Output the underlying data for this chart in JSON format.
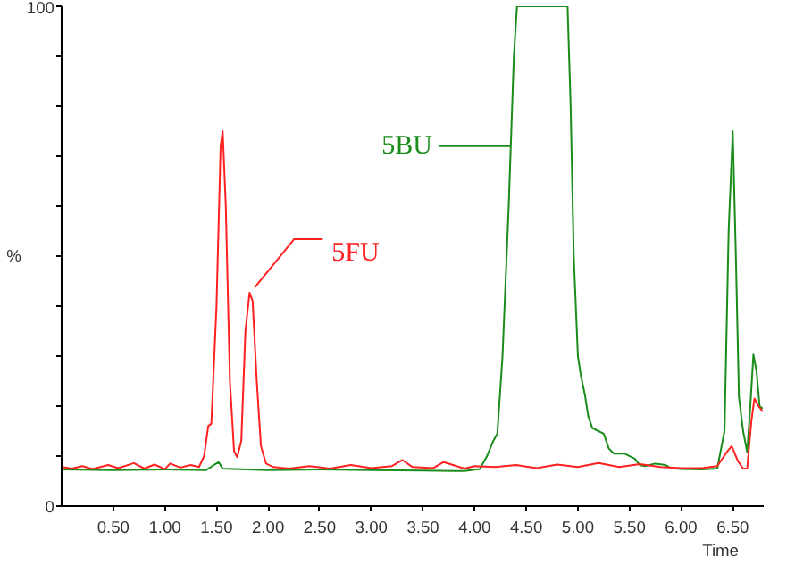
{
  "chart_data": {
    "type": "line",
    "xlabel": "Time",
    "ylabel": "%",
    "xlim": [
      0,
      6.8
    ],
    "ylim": [
      0,
      100
    ],
    "xticks": [
      {
        "value": 0.5,
        "label": "0.50"
      },
      {
        "value": 1.0,
        "label": "1.00"
      },
      {
        "value": 1.5,
        "label": "1.50"
      },
      {
        "value": 2.0,
        "label": "2.00"
      },
      {
        "value": 2.5,
        "label": "2.50"
      },
      {
        "value": 3.0,
        "label": "3.00"
      },
      {
        "value": 3.5,
        "label": "3.50"
      },
      {
        "value": 4.0,
        "label": "4.00"
      },
      {
        "value": 4.5,
        "label": "4.50"
      },
      {
        "value": 5.0,
        "label": "5.00"
      },
      {
        "value": 5.5,
        "label": "5.50"
      },
      {
        "value": 6.0,
        "label": "6.00"
      },
      {
        "value": 6.5,
        "label": "6.50"
      }
    ],
    "yticks": [
      0,
      {
        "value": 10,
        "label": null
      },
      {
        "value": 20,
        "label": null
      },
      {
        "value": 30,
        "label": null
      },
      {
        "value": 40,
        "label": null
      },
      {
        "value": 50,
        "label": null
      },
      {
        "value": 60,
        "label": null
      },
      {
        "value": 70,
        "label": null
      },
      {
        "value": 80,
        "label": null
      },
      {
        "value": 90,
        "label": null
      },
      100
    ],
    "grid": false,
    "marker": "none",
    "line_style": "solid",
    "series": [
      {
        "color": "#1a8c1a",
        "x": [
          0,
          0.5,
          1.0,
          1.4,
          1.52,
          1.56,
          2.0,
          2.5,
          3.0,
          3.5,
          3.9,
          4.05,
          4.12,
          4.18,
          4.22,
          4.27,
          4.33,
          4.38,
          4.41,
          4.6,
          4.9,
          4.93,
          4.96,
          5.0,
          5.03,
          5.07,
          5.1,
          5.14,
          5.2,
          5.25,
          5.3,
          5.35,
          5.45,
          5.55,
          5.6,
          5.65,
          5.75,
          5.85,
          5.9,
          6.0,
          6.2,
          6.35,
          6.42,
          6.46,
          6.5,
          6.53,
          6.56,
          6.6,
          6.64,
          6.67,
          6.7,
          6.73,
          6.76,
          6.79
        ],
        "values": [
          7.3,
          7.2,
          7.3,
          7.2,
          8.8,
          7.5,
          7.2,
          7.3,
          7.2,
          7.1,
          7.0,
          7.4,
          10,
          13,
          14.5,
          30,
          60,
          90,
          100,
          100,
          100,
          80,
          50,
          30,
          26,
          22,
          18,
          15.6,
          15,
          14.5,
          11.5,
          10.5,
          10.5,
          9.5,
          8.2,
          8.0,
          8.5,
          8.2,
          7.6,
          7.4,
          7.3,
          7.5,
          15,
          55,
          75,
          50,
          21.8,
          15,
          10.8,
          20,
          30.3,
          27,
          20,
          19.5
        ]
      },
      {
        "color": "#ff2020",
        "x": [
          0,
          0.1,
          0.2,
          0.3,
          0.45,
          0.55,
          0.7,
          0.8,
          0.9,
          1.0,
          1.05,
          1.15,
          1.25,
          1.33,
          1.38,
          1.42,
          1.45,
          1.5,
          1.54,
          1.56,
          1.59,
          1.63,
          1.67,
          1.7,
          1.74,
          1.78,
          1.82,
          1.85,
          1.89,
          1.93,
          1.98,
          2.05,
          2.2,
          2.4,
          2.6,
          2.8,
          3.0,
          3.2,
          3.3,
          3.4,
          3.6,
          3.7,
          3.9,
          4.0,
          4.2,
          4.4,
          4.6,
          4.8,
          5.0,
          5.2,
          5.4,
          5.6,
          5.8,
          6.0,
          6.2,
          6.35,
          6.45,
          6.49,
          6.55,
          6.6,
          6.64,
          6.68,
          6.71,
          6.75,
          6.79
        ],
        "values": [
          7.8,
          7.5,
          8.0,
          7.4,
          8.2,
          7.6,
          8.6,
          7.5,
          8.3,
          7.4,
          8.5,
          7.7,
          8.2,
          7.8,
          10,
          16,
          16.5,
          40,
          72,
          75,
          60,
          25,
          11,
          9.8,
          13,
          35,
          42.7,
          41,
          25,
          12,
          8.5,
          7.8,
          7.5,
          8.0,
          7.5,
          8.2,
          7.6,
          8.0,
          9.2,
          7.8,
          7.6,
          8.8,
          7.5,
          8.0,
          7.8,
          8.2,
          7.6,
          8.3,
          7.8,
          8.6,
          7.8,
          8.4,
          7.8,
          7.6,
          7.6,
          8.0,
          11,
          12,
          9,
          7.5,
          7.5,
          17,
          21.5,
          20,
          18.9
        ]
      }
    ],
    "annotations": [
      {
        "text": "5BU",
        "x": 4.35,
        "y": 72
      },
      {
        "text": "5FU",
        "x": 1.82,
        "y": 42.7
      }
    ]
  }
}
